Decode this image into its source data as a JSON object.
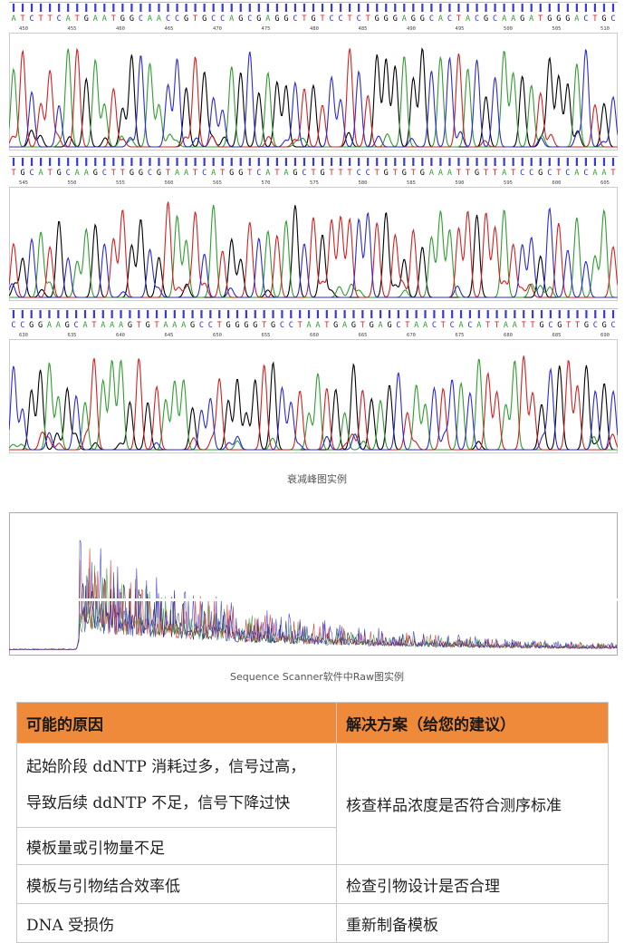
{
  "chart_data": [
    {
      "type": "line",
      "title": "",
      "bases": "ATCTTCATGAATGGCAACCGTGCCAGCGAGGCTGTCCTCTGGGAGGCACTACGCAAGATGGGACTGC",
      "position_ticks": [
        "450",
        "455",
        "460",
        "465",
        "470",
        "475",
        "480",
        "485",
        "490",
        "495",
        "500",
        "505",
        "510"
      ],
      "series": [
        {
          "color": "#000000"
        },
        {
          "color": "#2e9e2e"
        },
        {
          "color": "#d42020"
        },
        {
          "color": "#2b2bd0"
        }
      ]
    },
    {
      "type": "line",
      "title": "",
      "bases": "TGCATGCAAGCTTGGCGTAATCATGGTCATAGCTGTTTCCTGTGTGAAATTGTTATCCGCTCACAAT",
      "position_ticks": [
        "545",
        "550",
        "555",
        "560",
        "565",
        "570",
        "575",
        "580",
        "585",
        "590",
        "595",
        "600",
        "605"
      ],
      "series": [
        {
          "color": "#000000"
        },
        {
          "color": "#2e9e2e"
        },
        {
          "color": "#d42020"
        },
        {
          "color": "#2b2bd0"
        }
      ]
    },
    {
      "type": "line",
      "title": "",
      "bases": "CCGGAAGCATAAAGTGTAAAGCCTGGGGTGCCTAATGAGTGAGCTAACTCACATTAATTGCGTTGCGC",
      "position_ticks": [
        "630",
        "635",
        "640",
        "645",
        "650",
        "655",
        "660",
        "665",
        "670",
        "675",
        "680",
        "685",
        "690"
      ],
      "series": [
        {
          "color": "#000000"
        },
        {
          "color": "#2e9e2e"
        },
        {
          "color": "#d42020"
        },
        {
          "color": "#2b2bd0"
        }
      ]
    },
    {
      "type": "line",
      "title": "",
      "series": [
        {
          "color": "#000000"
        },
        {
          "color": "#2e9e2e"
        },
        {
          "color": "#d42020"
        },
        {
          "color": "#2b2bd0"
        }
      ]
    }
  ],
  "captions": {
    "decay": "衰减峰图实例",
    "raw": "Sequence Scanner软件中Raw图实例"
  },
  "table": {
    "header_cause": "可能的原因",
    "header_solution": "解决方案（给您的建议）",
    "row1_cause_line1": "起始阶段 ddNTP 消耗过多，信号过高，",
    "row1_cause_line2": "导致后续 ddNTP 不足，信号下降过快",
    "row1_solution": "核查样品浓度是否符合测序标准",
    "row2_cause": "模板量或引物量不足",
    "row3_cause": "模板与引物结合效率低",
    "row3_solution": "检查引物设计是否合理",
    "row4_cause": "DNA 受损伤",
    "row4_solution": "重新制备模板"
  }
}
